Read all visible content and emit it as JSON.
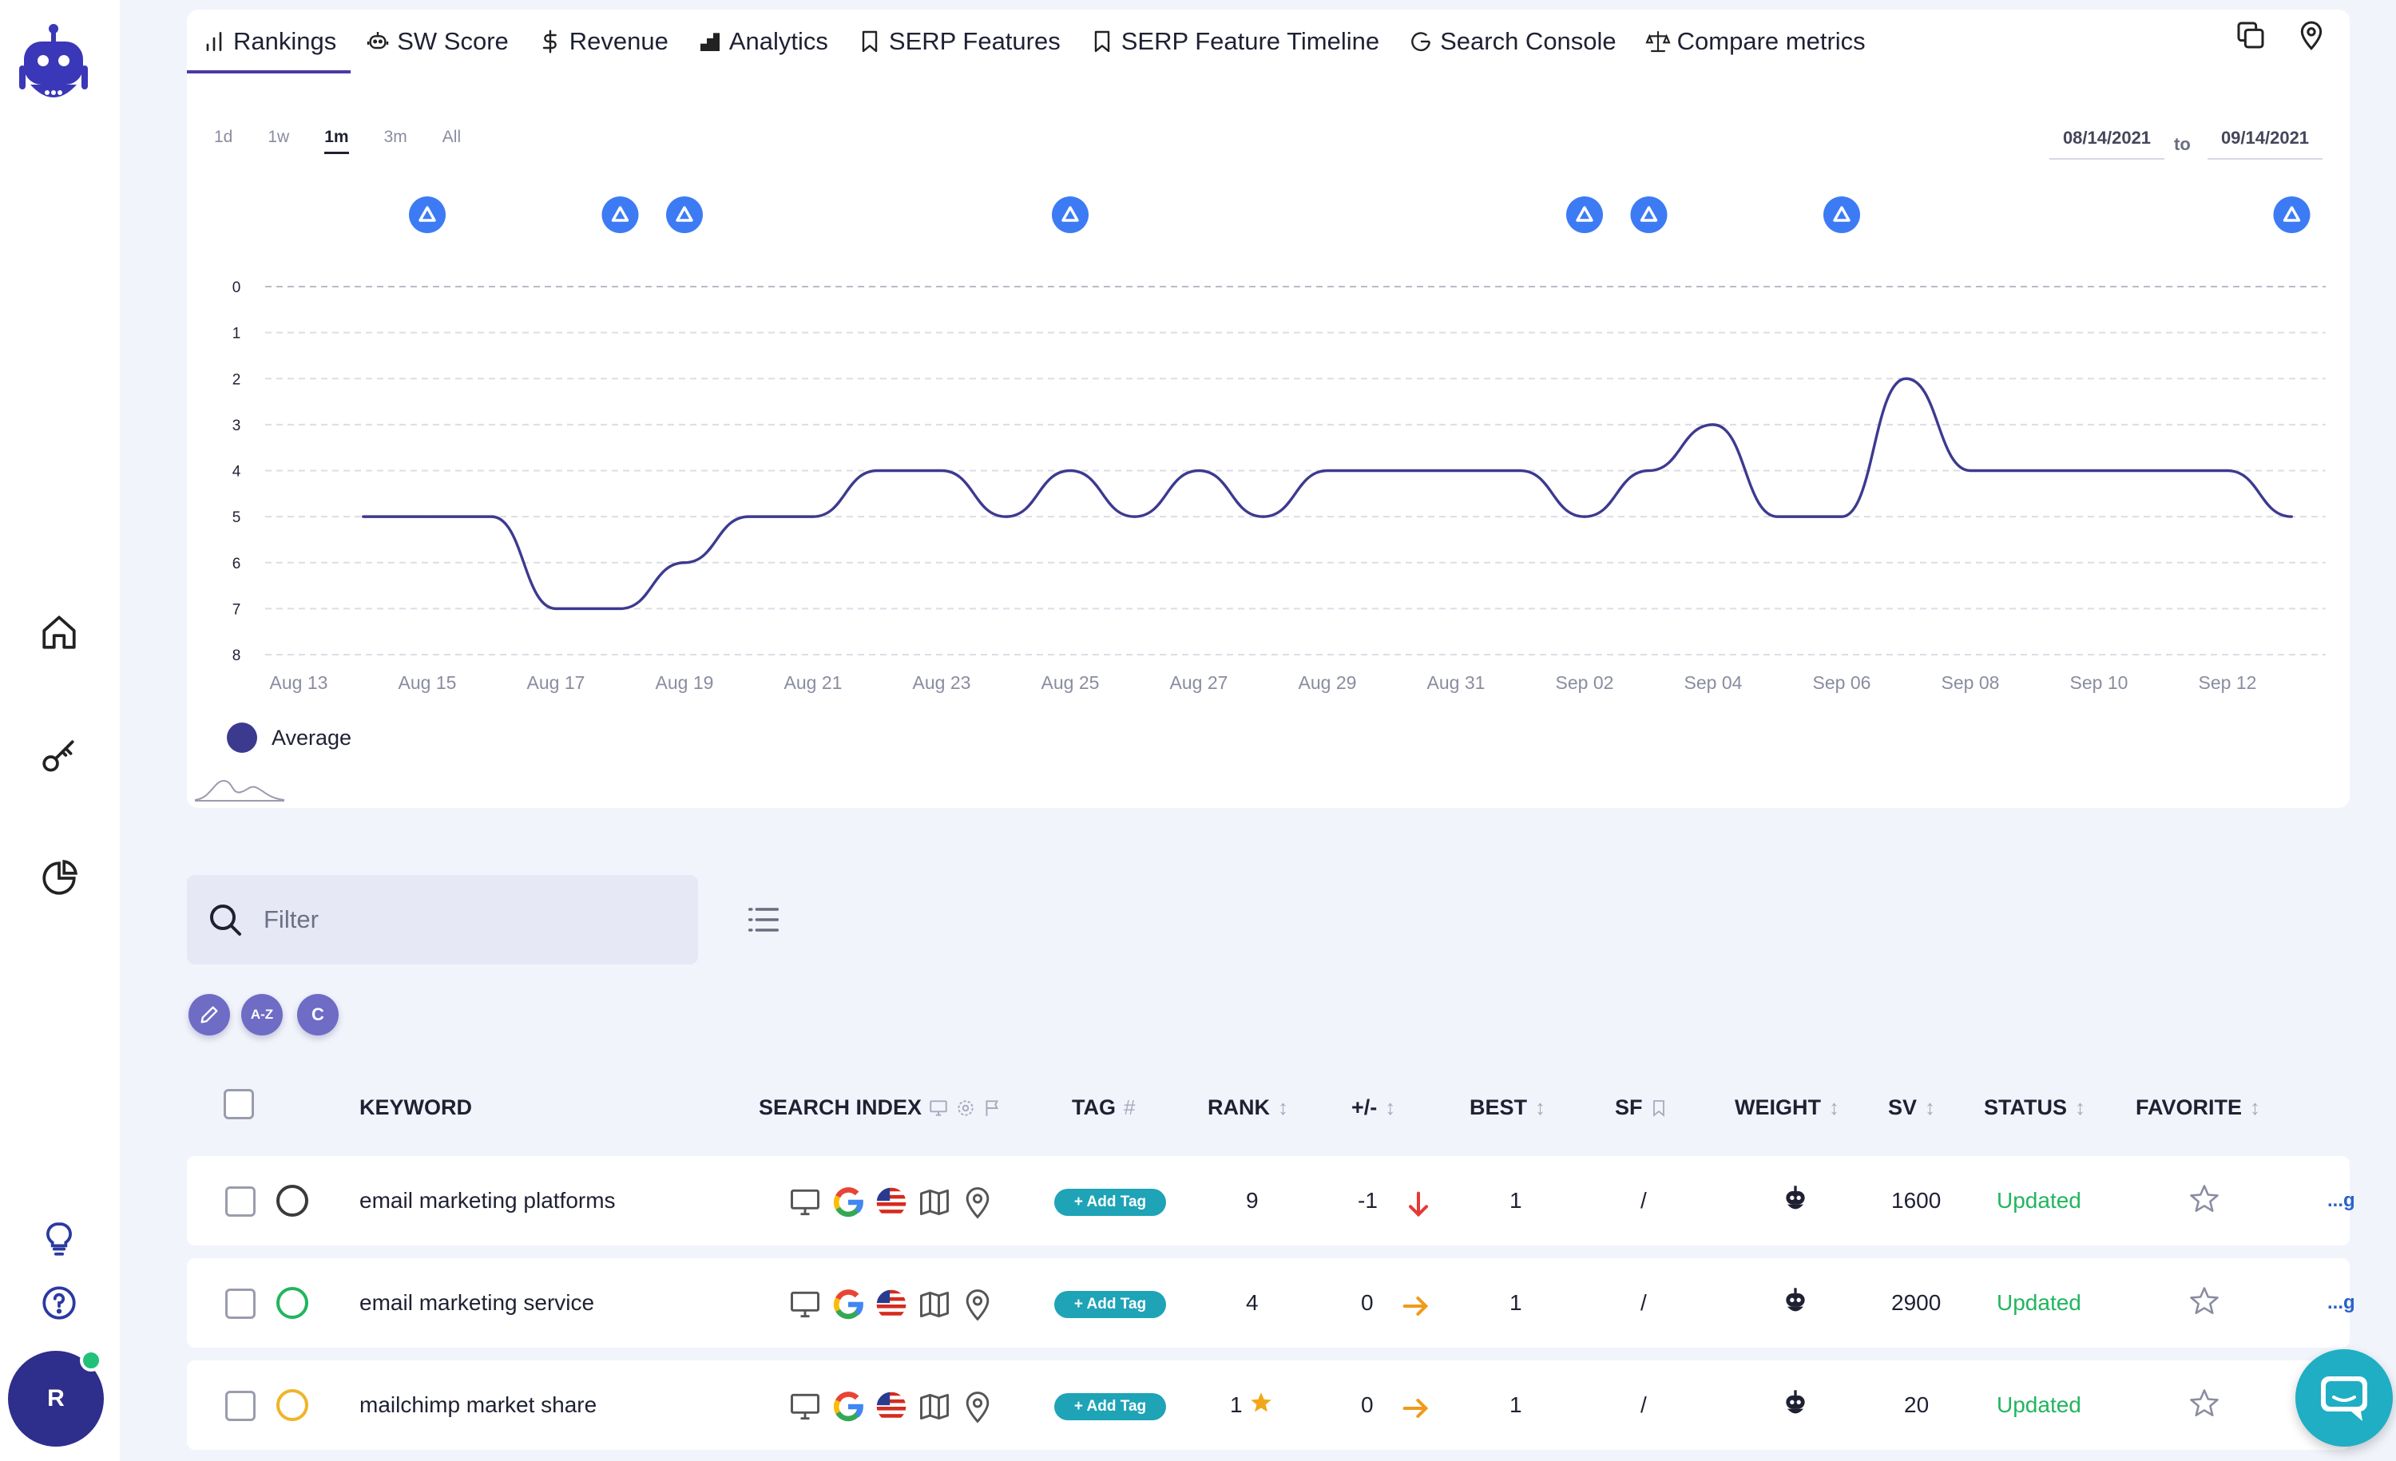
{
  "tabs": [
    {
      "label": "Rankings",
      "icon": "bar-chart-icon",
      "active": true
    },
    {
      "label": "SW Score",
      "icon": "robot-icon"
    },
    {
      "label": "Revenue",
      "icon": "dollar-icon"
    },
    {
      "label": "Analytics",
      "icon": "analytics-icon"
    },
    {
      "label": "SERP Features",
      "icon": "bookmark-icon"
    },
    {
      "label": "SERP Feature Timeline",
      "icon": "bookmark-icon"
    },
    {
      "label": "Search Console",
      "icon": "google-g-icon"
    },
    {
      "label": "Compare metrics",
      "icon": "scale-icon"
    }
  ],
  "ranges": [
    "1d",
    "1w",
    "1m",
    "3m",
    "All"
  ],
  "active_range": "1m",
  "date_from": "08/14/2021",
  "date_to_label": "to",
  "date_to": "09/14/2021",
  "chart_data": {
    "type": "line",
    "x": [
      "Aug 14",
      "Aug 15",
      "Aug 16",
      "Aug 17",
      "Aug 18",
      "Aug 19",
      "Aug 20",
      "Aug 21",
      "Aug 22",
      "Aug 23",
      "Aug 24",
      "Aug 25",
      "Aug 26",
      "Aug 27",
      "Aug 28",
      "Aug 29",
      "Aug 30",
      "Aug 31",
      "Sep 01",
      "Sep 02",
      "Sep 03",
      "Sep 04",
      "Sep 05",
      "Sep 06",
      "Sep 07",
      "Sep 08",
      "Sep 09",
      "Sep 10",
      "Sep 11",
      "Sep 12",
      "Sep 13"
    ],
    "x_tick_labels": [
      "Aug 13",
      "Aug 15",
      "Aug 17",
      "Aug 19",
      "Aug 21",
      "Aug 23",
      "Aug 25",
      "Aug 27",
      "Aug 29",
      "Aug 31",
      "Sep 02",
      "Sep 04",
      "Sep 06",
      "Sep 08",
      "Sep 10",
      "Sep 12"
    ],
    "series": [
      {
        "name": "Average",
        "color": "#3c3a8f",
        "values": [
          5,
          5,
          5,
          7,
          7,
          6,
          5,
          5,
          4,
          4,
          5,
          4,
          5,
          4,
          5,
          4,
          4,
          4,
          4,
          5,
          4,
          3,
          5,
          5,
          2,
          4,
          4,
          4,
          4,
          4,
          5
        ]
      }
    ],
    "y_ticks": [
      0,
      1,
      2,
      3,
      4,
      5,
      6,
      7,
      8
    ],
    "ylim": [
      0,
      8
    ],
    "y_inverted": true,
    "grid": "horizontal-dashed",
    "event_markers": [
      "Aug 15",
      "Aug 18",
      "Aug 19",
      "Aug 25",
      "Sep 02",
      "Sep 03",
      "Sep 06",
      "Sep 13"
    ],
    "legend_position": "bottom-left"
  },
  "filter": {
    "placeholder": "Filter"
  },
  "actions": [
    {
      "name": "edit-button",
      "icon": "pencil-icon",
      "label": ""
    },
    {
      "name": "sort-az-button",
      "label": "A-Z"
    },
    {
      "name": "c-button",
      "label": "C"
    }
  ],
  "columns": {
    "keyword": "KEYWORD",
    "search_index": "SEARCH INDEX",
    "tag": "TAG",
    "rank": "RANK",
    "change": "+/-",
    "best": "BEST",
    "sf": "SF",
    "weight": "WEIGHT",
    "sv": "SV",
    "status": "STATUS",
    "favorite": "FAVORITE"
  },
  "rows": [
    {
      "keyword": "email marketing platforms",
      "indicator_color": "#3a3a3a",
      "tag_label": "+ Add Tag",
      "rank": "9",
      "rank_star": false,
      "change": "-1",
      "trend": "down",
      "best": "1",
      "sf": "/",
      "sv": "1600",
      "status": "Updated",
      "more": "...g"
    },
    {
      "keyword": "email marketing service",
      "indicator_color": "#22b55e",
      "tag_label": "+ Add Tag",
      "rank": "4",
      "rank_star": false,
      "change": "0",
      "trend": "flat",
      "best": "1",
      "sf": "/",
      "sv": "2900",
      "status": "Updated",
      "more": "...g"
    },
    {
      "keyword": "mailchimp market share",
      "indicator_color": "#f0b429",
      "tag_label": "+ Add Tag",
      "rank": "1",
      "rank_star": true,
      "change": "0",
      "trend": "flat",
      "best": "1",
      "sf": "/",
      "sv": "20",
      "status": "Updated",
      "more": ""
    }
  ],
  "user": {
    "initial": "R"
  },
  "colors": {
    "accent": "#4a3aa6",
    "line": "#3c3a8f",
    "marker": "#3d7bf5",
    "updated": "#22b55e",
    "tag": "#1fa3b7",
    "chat": "#1faec4"
  }
}
